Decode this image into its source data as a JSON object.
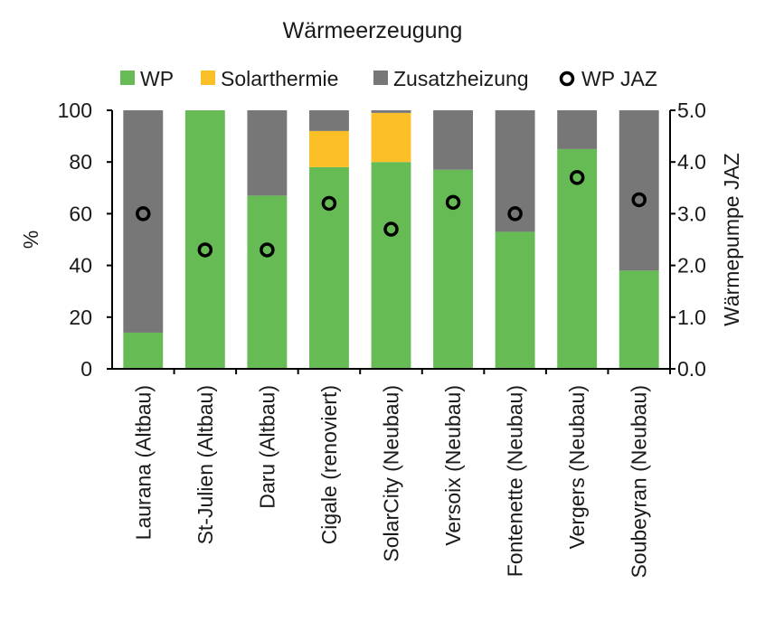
{
  "chart_data": {
    "type": "bar",
    "stacked": true,
    "title": "Wärmeerzeugung",
    "categories": [
      "Laurana (Altbau)",
      "St-Julien (Altbau)",
      "Daru (Altbau)",
      "Cigale (renoviert)",
      "SolarCity (Neubau)",
      "Versoix (Neubau)",
      "Fontenette (Neubau)",
      "Vergers (Neubau)",
      "Soubeyran (Neubau)"
    ],
    "series": [
      {
        "name": "WP",
        "color": "#66bb55",
        "values": [
          14,
          100,
          67,
          78,
          80,
          77,
          53,
          85,
          38
        ]
      },
      {
        "name": "Solarthermie",
        "color": "#fbbf28",
        "values": [
          0,
          0,
          0,
          14,
          19,
          0,
          0,
          0,
          0
        ]
      },
      {
        "name": "Zusatzheizung",
        "color": "#777777",
        "values": [
          86,
          0,
          33,
          8,
          1,
          23,
          47,
          15,
          62
        ]
      }
    ],
    "line_series": {
      "name": "WP JAZ",
      "axis": "right",
      "marker": "circle",
      "values": [
        3.0,
        2.3,
        2.3,
        3.2,
        2.7,
        3.22,
        3.0,
        3.7,
        3.27
      ]
    },
    "ylabel": "%",
    "ylabel_right": "Wärmepumpe JAZ",
    "ylim": [
      0,
      100
    ],
    "ylim_right": [
      0,
      5
    ],
    "yticks": [
      "0",
      "20",
      "40",
      "60",
      "80",
      "100"
    ],
    "yticks_right": [
      "0.0",
      "1.0",
      "2.0",
      "3.0",
      "4.0",
      "5.0"
    ],
    "legend_position": "top",
    "grid": false
  }
}
